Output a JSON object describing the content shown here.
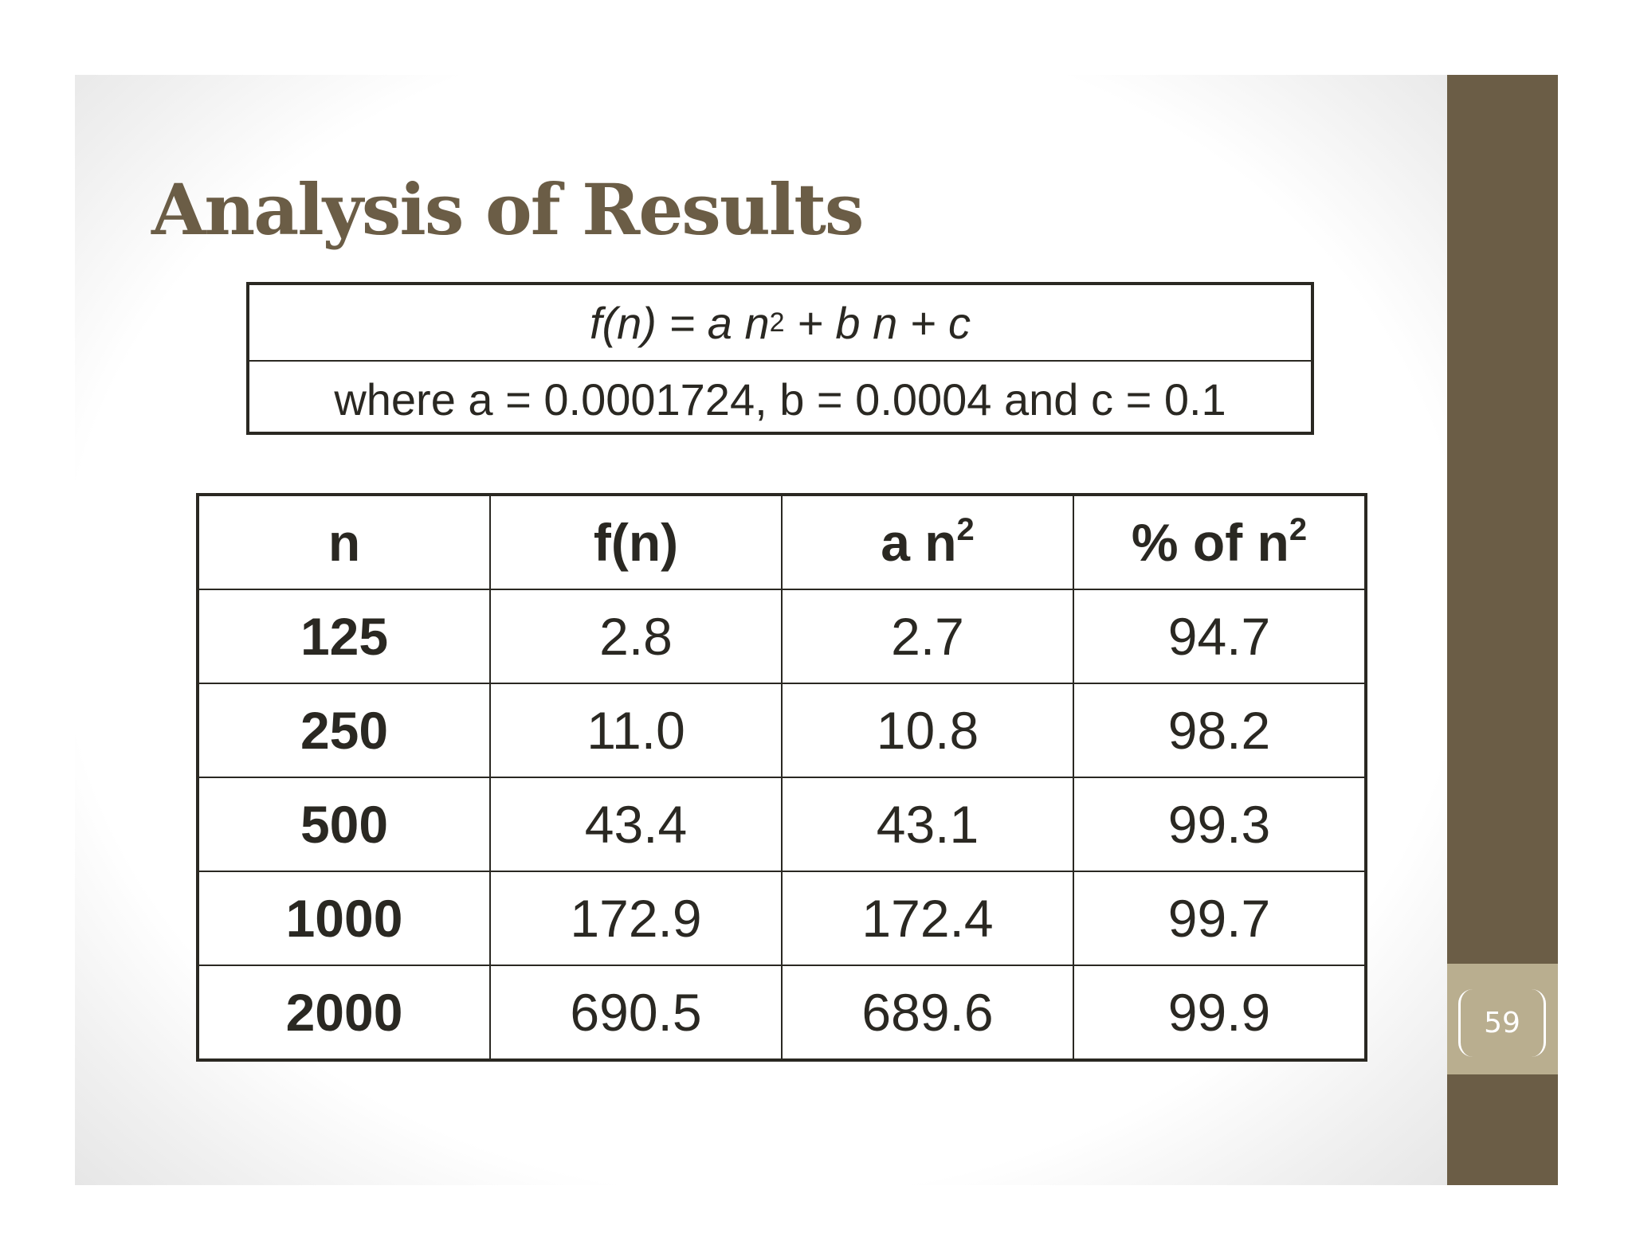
{
  "title": "Analysis of Results",
  "formula": {
    "left": "f(n) = a n",
    "exponent": "2",
    "right": " + b n + c",
    "where": "where a = 0.0001724, b = 0.0004 and c = 0.1"
  },
  "table": {
    "headers": [
      {
        "base": "n",
        "sup": ""
      },
      {
        "base": "f(n)",
        "sup": ""
      },
      {
        "base": "a n",
        "sup": "2"
      },
      {
        "base": "% of n",
        "sup": "2"
      }
    ],
    "rows": [
      [
        "125",
        "2.8",
        "2.7",
        "94.7"
      ],
      [
        "250",
        "11.0",
        "10.8",
        "98.2"
      ],
      [
        "500",
        "43.4",
        "43.1",
        "99.3"
      ],
      [
        "1000",
        "172.9",
        "172.4",
        "99.7"
      ],
      [
        "2000",
        "690.5",
        "689.6",
        "99.9"
      ]
    ]
  },
  "page_number": "59",
  "colors": {
    "accent": "#6b5d46",
    "page_badge": "#b9ae8f",
    "text": "#2a2822"
  }
}
